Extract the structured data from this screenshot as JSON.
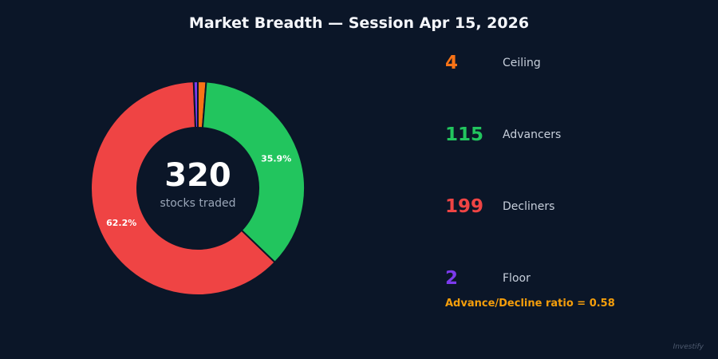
{
  "title": "Market Breadth — Session Apr 15, 2026",
  "center": {
    "value": "320",
    "label": "stocks traded"
  },
  "chart_data": {
    "type": "pie",
    "title": "Market Breadth — Session Apr 15, 2026",
    "total": 320,
    "slices": [
      {
        "label": "Ceiling",
        "value": 4,
        "color": "#f97316"
      },
      {
        "label": "Advancers",
        "value": 115,
        "color": "#22c55e",
        "pct_label": "35.9%"
      },
      {
        "label": "Decliners",
        "value": 199,
        "color": "#ef4444",
        "pct_label": "62.2%"
      },
      {
        "label": "Floor",
        "value": 2,
        "color": "#7c3aed"
      }
    ]
  },
  "legend": [
    {
      "count": "4",
      "label": "Ceiling",
      "color": "#f97316"
    },
    {
      "count": "115",
      "label": "Advancers",
      "color": "#22c55e"
    },
    {
      "count": "199",
      "label": "Decliners",
      "color": "#ef4444"
    },
    {
      "count": "2",
      "label": "Floor",
      "color": "#7c3aed"
    }
  ],
  "ratio_text": "Advance/Decline ratio = 0.58",
  "watermark": "Investify"
}
